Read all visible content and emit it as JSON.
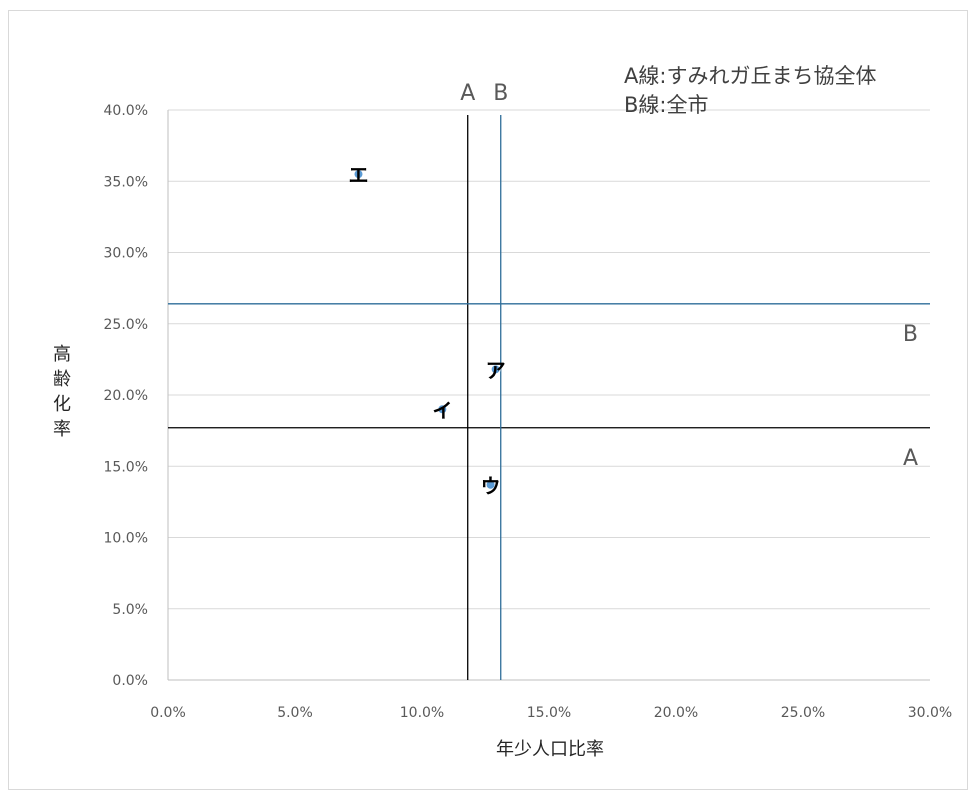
{
  "chart_data": {
    "type": "scatter",
    "xlabel": "年少人口比率",
    "ylabel": "高齢化率",
    "xlim": [
      0,
      30
    ],
    "ylim": [
      0,
      40
    ],
    "x_ticks": [
      "0.0%",
      "5.0%",
      "10.0%",
      "15.0%",
      "20.0%",
      "25.0%",
      "30.0%"
    ],
    "y_ticks": [
      "0.0%",
      "5.0%",
      "10.0%",
      "15.0%",
      "20.0%",
      "25.0%",
      "30.0%",
      "35.0%",
      "40.0%"
    ],
    "grid": "horizontal",
    "points": [
      {
        "label": "ア",
        "x": 12.9,
        "y": 21.8
      },
      {
        "label": "イ",
        "x": 10.8,
        "y": 19.0
      },
      {
        "label": "ウ",
        "x": 12.7,
        "y": 13.7
      },
      {
        "label": "エ",
        "x": 7.5,
        "y": 35.5
      }
    ],
    "reference_lines": {
      "A": {
        "label": "A",
        "x": 11.8,
        "y": 17.7,
        "color": "#000000"
      },
      "B": {
        "label": "B",
        "x": 13.1,
        "y": 26.4,
        "color": "#2e6d99"
      }
    },
    "legend_notes": [
      "A線:すみれガ丘まち協全体",
      "B線:全市"
    ],
    "colors": {
      "grid": "#d9d9d9",
      "axis": "#bfbfbf",
      "point": "#5b9bd5"
    }
  }
}
